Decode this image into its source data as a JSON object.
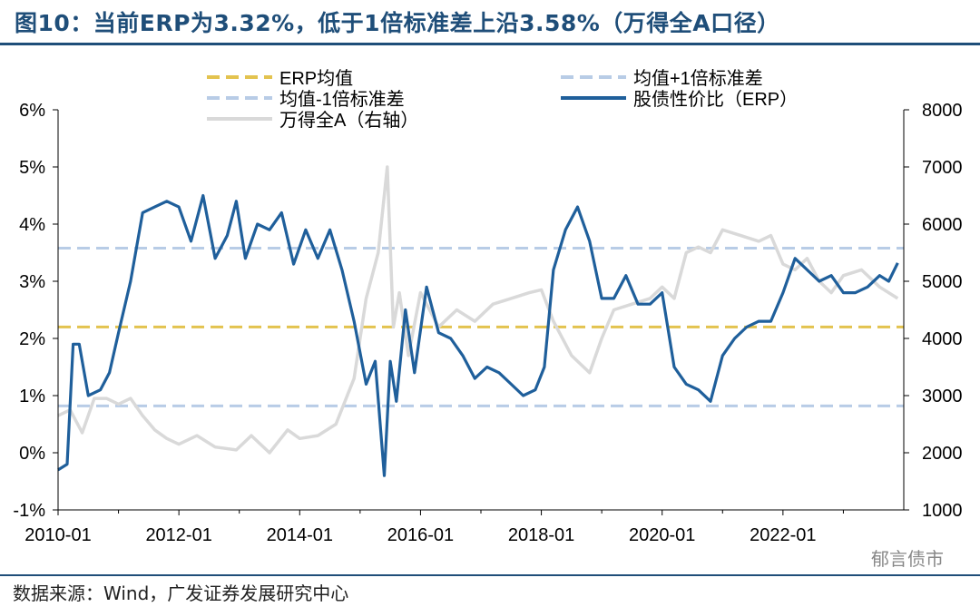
{
  "header": {
    "title": "图10：当前ERP为3.32%，低于1倍标准差上沿3.58%（万得全A口径）"
  },
  "footer": {
    "source": "数据来源：Wind，广发证券发展研究中心",
    "watermark": "郁言债市"
  },
  "chart_data": {
    "type": "line",
    "x_ticks": [
      "2010-01",
      "2012-01",
      "2014-01",
      "2016-01",
      "2018-01",
      "2020-01",
      "2022-01"
    ],
    "x_range": [
      "2010-01",
      "2023-12"
    ],
    "left_axis": {
      "ylim": [
        -1,
        6
      ],
      "ticks": [
        "-1%",
        "0%",
        "1%",
        "2%",
        "3%",
        "4%",
        "5%",
        "6%"
      ]
    },
    "right_axis": {
      "ylim": [
        1000,
        8000
      ],
      "ticks": [
        "1000",
        "2000",
        "3000",
        "4000",
        "5000",
        "6000",
        "7000",
        "8000"
      ]
    },
    "legend": {
      "placement": "top",
      "entries": [
        "ERP均值",
        "均值+1倍标准差",
        "均值-1倍标准差",
        "股债性价比（ERP）",
        "万得全A（右轴）"
      ]
    },
    "colors": {
      "erp": "#1f5f9b",
      "mean": "#e3c34f",
      "band": "#b8cce6",
      "index": "#d9d9d9"
    },
    "reference_lines": {
      "mean": 2.2,
      "upper": 3.58,
      "lower": 0.82
    },
    "series": [
      {
        "name": "股债性价比（ERP）",
        "axis": "left",
        "color": "#1f5f9b",
        "x": [
          2010.0,
          2010.15,
          2010.25,
          2010.35,
          2010.5,
          2010.7,
          2010.85,
          2011.0,
          2011.2,
          2011.4,
          2011.6,
          2011.8,
          2012.0,
          2012.2,
          2012.4,
          2012.6,
          2012.8,
          2012.95,
          2013.1,
          2013.3,
          2013.5,
          2013.7,
          2013.9,
          2014.1,
          2014.3,
          2014.5,
          2014.7,
          2014.9,
          2015.1,
          2015.25,
          2015.4,
          2015.5,
          2015.6,
          2015.75,
          2015.9,
          2016.1,
          2016.3,
          2016.5,
          2016.7,
          2016.9,
          2017.1,
          2017.3,
          2017.5,
          2017.7,
          2017.9,
          2018.05,
          2018.2,
          2018.4,
          2018.6,
          2018.8,
          2019.0,
          2019.2,
          2019.4,
          2019.6,
          2019.8,
          2020.0,
          2020.2,
          2020.4,
          2020.6,
          2020.8,
          2021.0,
          2021.2,
          2021.4,
          2021.6,
          2021.8,
          2022.0,
          2022.2,
          2022.4,
          2022.6,
          2022.8,
          2023.0,
          2023.2,
          2023.4,
          2023.6,
          2023.75,
          2023.9
        ],
        "values": [
          -0.3,
          -0.2,
          1.9,
          1.9,
          1.0,
          1.1,
          1.4,
          2.1,
          3.0,
          4.2,
          4.3,
          4.4,
          4.3,
          3.7,
          4.5,
          3.4,
          3.8,
          4.4,
          3.4,
          4.0,
          3.9,
          4.2,
          3.3,
          3.9,
          3.4,
          3.9,
          3.2,
          2.3,
          1.2,
          1.6,
          -0.4,
          1.6,
          0.9,
          2.5,
          1.4,
          2.9,
          2.1,
          2.0,
          1.7,
          1.3,
          1.5,
          1.4,
          1.2,
          1.0,
          1.1,
          1.5,
          3.2,
          3.9,
          4.3,
          3.7,
          2.7,
          2.7,
          3.1,
          2.6,
          2.6,
          2.8,
          1.5,
          1.2,
          1.1,
          0.9,
          1.7,
          2.0,
          2.2,
          2.3,
          2.3,
          2.8,
          3.4,
          3.2,
          3.0,
          3.1,
          2.8,
          2.8,
          2.9,
          3.1,
          3.0,
          3.32
        ]
      },
      {
        "name": "万得全A（右轴）",
        "axis": "right",
        "color": "#d9d9d9",
        "x": [
          2010.0,
          2010.2,
          2010.4,
          2010.6,
          2010.8,
          2011.0,
          2011.2,
          2011.4,
          2011.6,
          2011.8,
          2012.0,
          2012.3,
          2012.6,
          2012.95,
          2013.2,
          2013.5,
          2013.8,
          2014.0,
          2014.3,
          2014.6,
          2014.9,
          2015.1,
          2015.3,
          2015.45,
          2015.55,
          2015.65,
          2015.8,
          2016.0,
          2016.3,
          2016.6,
          2016.9,
          2017.2,
          2017.5,
          2017.8,
          2018.0,
          2018.2,
          2018.5,
          2018.8,
          2019.0,
          2019.2,
          2019.5,
          2019.8,
          2020.0,
          2020.2,
          2020.4,
          2020.6,
          2020.8,
          2021.0,
          2021.3,
          2021.6,
          2021.8,
          2022.0,
          2022.2,
          2022.4,
          2022.6,
          2022.8,
          2023.0,
          2023.3,
          2023.6,
          2023.9
        ],
        "values": [
          2650,
          2750,
          2350,
          2950,
          2950,
          2850,
          2950,
          2650,
          2400,
          2250,
          2150,
          2300,
          2100,
          2050,
          2300,
          2000,
          2400,
          2250,
          2300,
          2500,
          3300,
          4700,
          5500,
          7000,
          4200,
          4800,
          3700,
          4800,
          4200,
          4500,
          4300,
          4600,
          4700,
          4800,
          4850,
          4300,
          3700,
          3400,
          4000,
          4500,
          4600,
          4700,
          4900,
          4700,
          5500,
          5600,
          5500,
          5900,
          5800,
          5700,
          5800,
          5300,
          5200,
          5400,
          5000,
          4800,
          5100,
          5200,
          4900,
          4700
        ]
      }
    ],
    "grid": false
  }
}
